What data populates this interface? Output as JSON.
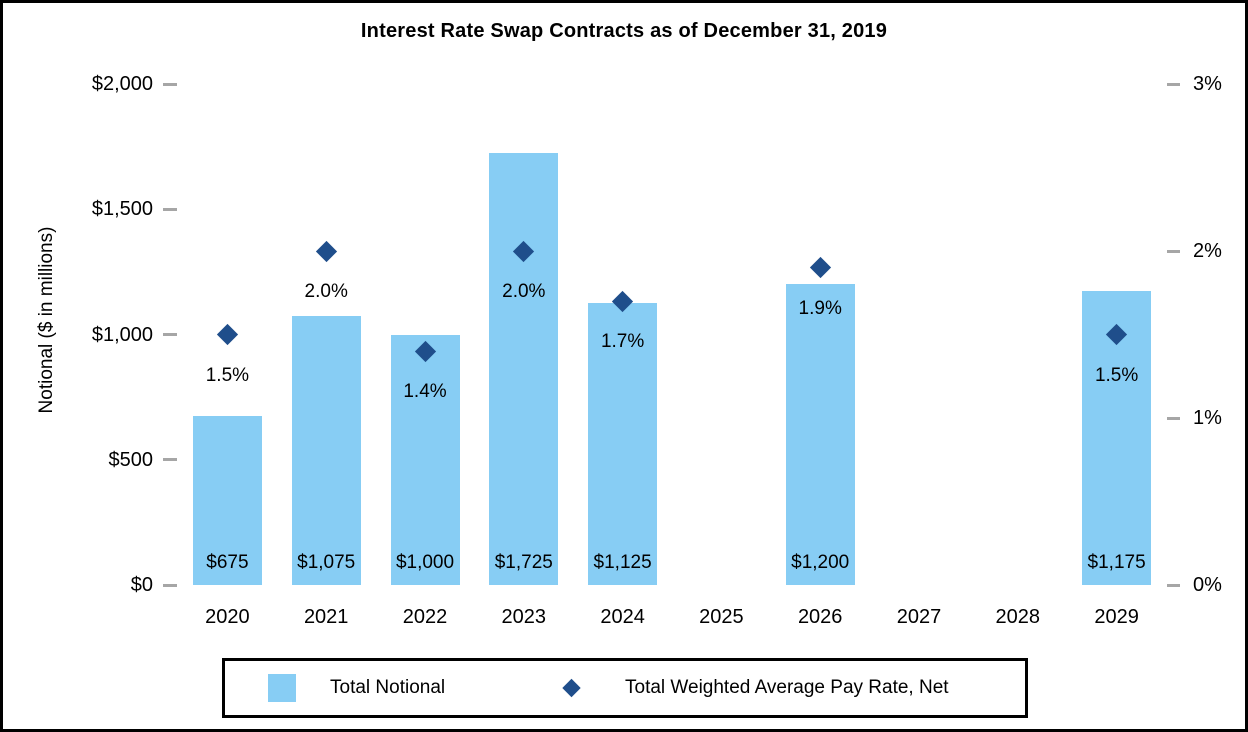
{
  "chart_data": {
    "type": "bar",
    "title": "Interest Rate Swap Contracts as of December 31, 2019",
    "categories": [
      "2020",
      "2021",
      "2022",
      "2023",
      "2024",
      "2025",
      "2026",
      "2027",
      "2028",
      "2029"
    ],
    "series": [
      {
        "name": "Total Notional",
        "chart_type": "bar",
        "axis": "left",
        "values": [
          675,
          1075,
          1000,
          1725,
          1125,
          null,
          1200,
          null,
          null,
          1175
        ],
        "data_labels": [
          "$675",
          "$1,075",
          "$1,000",
          "$1,725",
          "$1,125",
          null,
          "$1,200",
          null,
          null,
          "$1,175"
        ],
        "color": "#87CDF4"
      },
      {
        "name": "Total Weighted Average Pay Rate, Net",
        "chart_type": "scatter",
        "marker": "diamond",
        "axis": "right",
        "values": [
          1.5,
          2.0,
          1.4,
          2.0,
          1.7,
          null,
          1.9,
          null,
          null,
          1.5
        ],
        "data_labels": [
          "1.5%",
          "2.0%",
          "1.4%",
          "2.0%",
          "1.7%",
          null,
          "1.9%",
          null,
          null,
          "1.5%"
        ],
        "color": "#1F4E8B"
      }
    ],
    "left_axis": {
      "title": "Notional ($ in millions)",
      "min": 0,
      "max": 2000,
      "tick_values": [
        0,
        500,
        1000,
        1500,
        2000
      ],
      "tick_labels": [
        "$0",
        "$500",
        "$1,000",
        "$1,500",
        "$2,000"
      ]
    },
    "right_axis": {
      "min": 0,
      "max": 3,
      "tick_values": [
        0,
        1,
        2,
        3
      ],
      "tick_labels": [
        "0%",
        "1%",
        "2%",
        "3%"
      ]
    },
    "legend": {
      "position": "bottom",
      "entries": [
        {
          "label": "Total Notional",
          "marker": "square",
          "color": "#87CDF4"
        },
        {
          "label": "Total Weighted Average Pay Rate, Net",
          "marker": "diamond",
          "color": "#1F4E8B"
        }
      ]
    },
    "grid": false,
    "styles": {
      "tick_color": "#A6A6A6",
      "text_color": "#000000",
      "frame_border_color": "#000000",
      "background": "#FFFFFF"
    }
  }
}
